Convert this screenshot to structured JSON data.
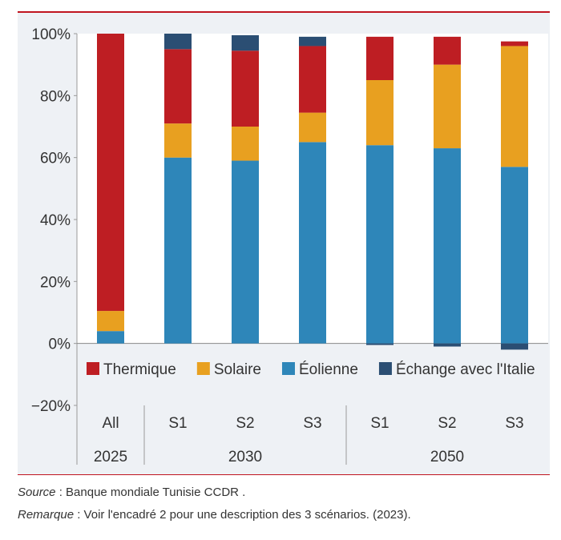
{
  "chart_data": {
    "type": "bar",
    "stacked": true,
    "ylim": [
      -20,
      100
    ],
    "yticks": [
      -20,
      0,
      20,
      40,
      60,
      80,
      100
    ],
    "ytick_labels": [
      "−20%",
      "0%",
      "20%",
      "40%",
      "60%",
      "80%",
      "100%"
    ],
    "categories": [
      "All",
      "S1",
      "S2",
      "S3",
      "S1",
      "S2",
      "S3"
    ],
    "groups": [
      {
        "label": "2025",
        "span": 1
      },
      {
        "label": "2030",
        "span": 3
      },
      {
        "label": "2050",
        "span": 3
      }
    ],
    "series": [
      {
        "name": "Éolienne",
        "color": "#2e86b9",
        "values": [
          4,
          60,
          59,
          65,
          64,
          63,
          57
        ]
      },
      {
        "name": "Solaire",
        "color": "#e8a020",
        "values": [
          6.5,
          11,
          11,
          9.5,
          21,
          27,
          39
        ]
      },
      {
        "name": "Thermique",
        "color": "#be1e23",
        "values": [
          89.5,
          24,
          24.5,
          21.5,
          14,
          9,
          1.5
        ]
      },
      {
        "name": "Échange avec l'Italie",
        "color": "#2b4e73",
        "values": [
          0,
          5,
          5,
          3,
          -0.5,
          -1,
          -2
        ]
      }
    ],
    "legend": [
      {
        "name": "Thermique",
        "color": "#be1e23"
      },
      {
        "name": "Solaire",
        "color": "#e8a020"
      },
      {
        "name": "Éolienne",
        "color": "#2e86b9"
      },
      {
        "name": "Échange avec l'Italie",
        "color": "#2b4e73"
      }
    ],
    "legend_position": "bottom-inside"
  },
  "footer": {
    "source_label": "Source",
    "source_text": " : Banque mondiale Tunisie CCDR .",
    "note_label": "Remarque",
    "note_text": " : Voir l'encadré 2 pour une description des 3 scénarios. (2023)."
  }
}
